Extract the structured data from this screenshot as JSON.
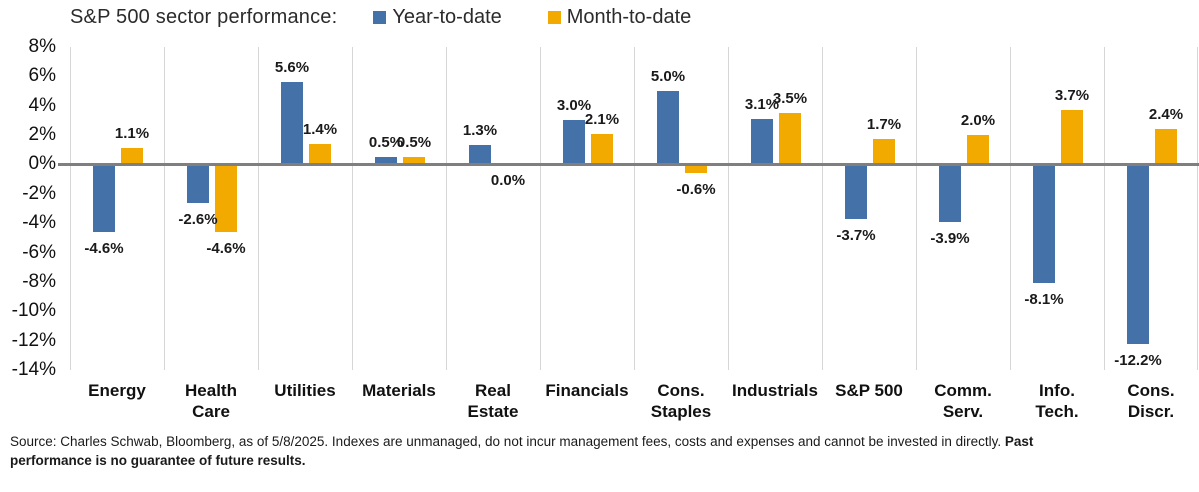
{
  "header": {
    "title": "S&P 500 sector performance:"
  },
  "footer": {
    "source_text": "Source: Charles Schwab, Bloomberg, as of 5/8/2025. Indexes are unmanaged, do not incur management fees, costs and expenses and cannot be invested in directly. ",
    "source_bold": "Past performance is no guarantee of future results."
  },
  "chart_data": {
    "type": "bar",
    "title": "S&P 500 sector performance:",
    "xlabel": "",
    "ylabel": "",
    "ylim": [
      -14,
      8
    ],
    "grid": "vertical-only",
    "legend_position": "top",
    "zero_line_color": "#7f7f7f",
    "gridline_color": "#d6d6d6",
    "categories": [
      "Energy",
      "Health\nCare",
      "Utilities",
      "Materials",
      "Real\nEstate",
      "Financials",
      "Cons.\nStaples",
      "Industrials",
      "S&P 500",
      "Comm.\nServ.",
      "Info.\nTech.",
      "Cons.\nDiscr."
    ],
    "y_ticks": [
      {
        "value": 8,
        "label": "8%"
      },
      {
        "value": 6,
        "label": "6%"
      },
      {
        "value": 4,
        "label": "4%"
      },
      {
        "value": 2,
        "label": "2%"
      },
      {
        "value": 0,
        "label": "0%"
      },
      {
        "value": -2,
        "label": "-2%"
      },
      {
        "value": -4,
        "label": "-4%"
      },
      {
        "value": -6,
        "label": "-6%"
      },
      {
        "value": -8,
        "label": "-8%"
      },
      {
        "value": -10,
        "label": "-10%"
      },
      {
        "value": -12,
        "label": "-12%"
      },
      {
        "value": -14,
        "label": "-14%"
      }
    ],
    "series": [
      {
        "name": "Year-to-date",
        "color": "#4472A8",
        "values": [
          -4.6,
          -2.6,
          5.6,
          0.5,
          1.3,
          3.0,
          5.0,
          3.1,
          -3.7,
          -3.9,
          -8.1,
          -12.2
        ],
        "labels": [
          "-4.6%",
          "-2.6%",
          "5.6%",
          "0.5%",
          "1.3%",
          "3.0%",
          "5.0%",
          "3.1%",
          "-3.7%",
          "-3.9%",
          "-8.1%",
          "-12.2%"
        ]
      },
      {
        "name": "Month-to-date",
        "color": "#F2A900",
        "values": [
          1.1,
          -4.6,
          1.4,
          0.5,
          0.0,
          2.1,
          -0.6,
          3.5,
          1.7,
          2.0,
          3.7,
          2.4
        ],
        "labels": [
          "1.1%",
          "-4.6%",
          "1.4%",
          "0.5%",
          "0.0%",
          "2.1%",
          "-0.6%",
          "3.5%",
          "1.7%",
          "2.0%",
          "3.7%",
          "2.4%"
        ]
      }
    ]
  }
}
